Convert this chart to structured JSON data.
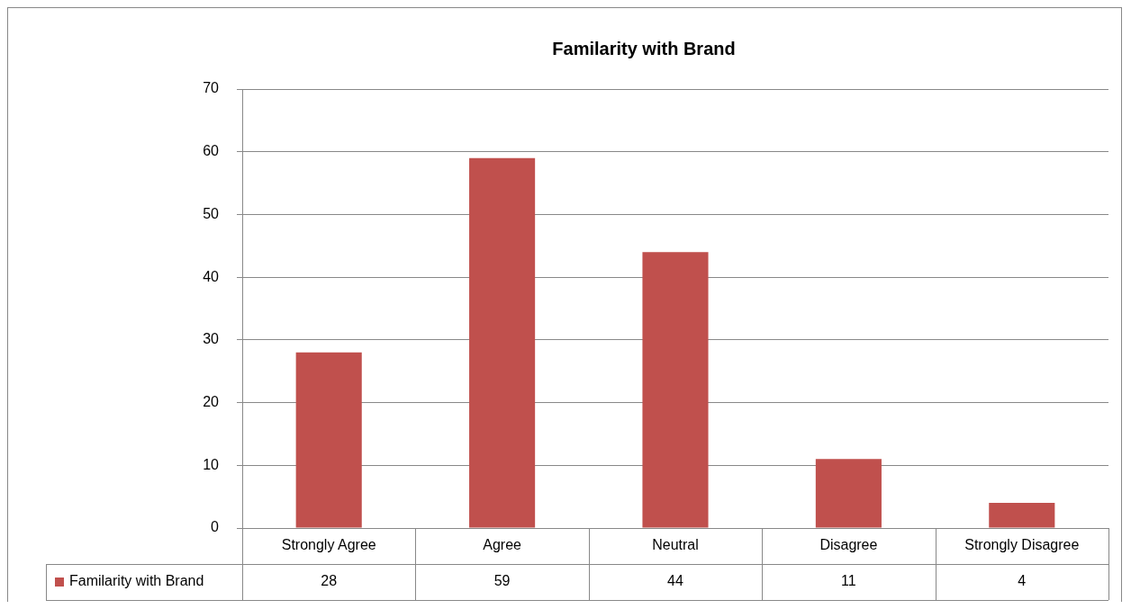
{
  "chart_data": {
    "type": "bar",
    "title": "Familarity with Brand",
    "categories": [
      "Strongly Agree",
      "Agree",
      "Neutral",
      "Disagree",
      "Strongly Disagree"
    ],
    "series": [
      {
        "name": "Familarity with Brand",
        "color": "#c0504d",
        "values": [
          28,
          59,
          44,
          11,
          4
        ]
      }
    ],
    "ylim": [
      0,
      70
    ],
    "yticks": [
      0,
      10,
      20,
      30,
      40,
      50,
      60,
      70
    ],
    "grid": "y",
    "legend": "bottom",
    "data_labels": true
  }
}
